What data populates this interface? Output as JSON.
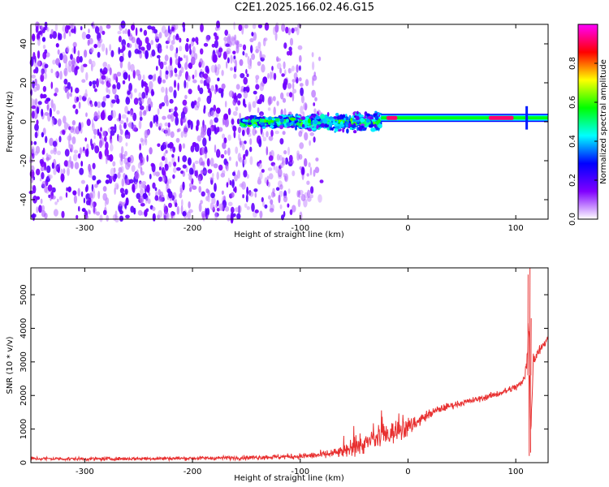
{
  "title": "C2E1.2025.166.02.46.G15",
  "chart_data": [
    {
      "type": "heatmap",
      "title": "C2E1.2025.166.02.46.G15",
      "xlabel": "Height of straight line (km)",
      "ylabel": "Frequency (Hz)",
      "xlim": [
        -350,
        130
      ],
      "ylim": [
        -50,
        50
      ],
      "xticks": [
        -300,
        -200,
        -100,
        0,
        100
      ],
      "yticks": [
        -40,
        -20,
        0,
        20,
        40
      ],
      "colorbar": {
        "label": "Normalized spectral amplitude",
        "range": [
          0,
          1
        ],
        "ticks": [
          0.0,
          0.2,
          0.4,
          0.6,
          0.8
        ],
        "colormap": [
          "#ffffff",
          "#8000ff",
          "#0000ff",
          "#00ffff",
          "#00ff00",
          "#ffff00",
          "#ff0000",
          "#ff00ff"
        ]
      },
      "regions": [
        {
          "x_range": [
            -350,
            -80
          ],
          "freq_range": [
            -50,
            50
          ],
          "amplitude": 0.05,
          "description": "sparse purple noise"
        },
        {
          "x_range": [
            -155,
            -25
          ],
          "center_freq": 0,
          "amplitude": 0.25
        },
        {
          "x_range": [
            -25,
            130
          ],
          "center_freq": 2,
          "amplitude": 0.6
        },
        {
          "x_range": [
            -20,
            -10
          ],
          "center_freq": 2,
          "amplitude": 0.95
        },
        {
          "x_range": [
            75,
            98
          ],
          "center_freq": 2,
          "amplitude": 0.95
        }
      ]
    },
    {
      "type": "line",
      "xlabel": "Height of straight line (km)",
      "ylabel": "SNR (10 * v/v)",
      "xlim": [
        -350,
        130
      ],
      "ylim": [
        0,
        5800
      ],
      "xticks": [
        -300,
        -200,
        -100,
        0,
        100
      ],
      "yticks": [
        0,
        1000,
        2000,
        3000,
        4000,
        5000
      ],
      "color": "#e83030",
      "series": [
        {
          "x": [
            -350,
            -300,
            -250,
            -200,
            -150,
            -100,
            -80,
            -60,
            -50,
            -40,
            -30,
            -20,
            -10,
            0,
            10,
            20,
            30,
            40,
            50,
            60,
            70,
            80,
            90,
            100,
            105,
            108,
            110,
            112,
            114,
            116,
            120,
            125,
            130
          ],
          "y": [
            120,
            110,
            120,
            130,
            150,
            190,
            230,
            320,
            420,
            560,
            700,
            820,
            950,
            1050,
            1250,
            1450,
            1600,
            1700,
            1780,
            1850,
            1930,
            2020,
            2120,
            2250,
            2350,
            2500,
            3100,
            4200,
            800,
            3000,
            3300,
            3500,
            3680
          ],
          "noise": [
            100,
            90,
            90,
            100,
            110,
            150,
            200,
            300,
            400,
            500,
            550,
            600,
            550,
            500,
            300,
            250,
            200,
            170,
            160,
            160,
            160,
            170,
            180,
            200,
            220,
            250,
            800,
            1500,
            400,
            500,
            300,
            250,
            200
          ]
        }
      ]
    }
  ]
}
